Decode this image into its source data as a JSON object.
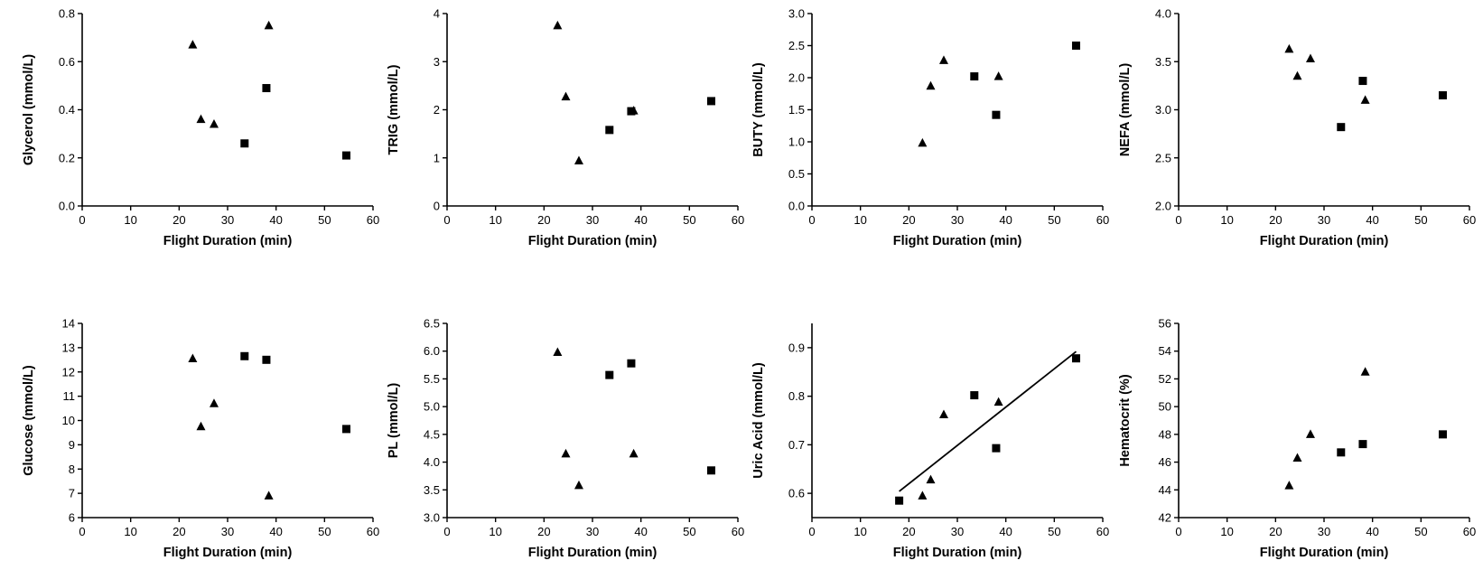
{
  "chart_data": [
    {
      "type": "scatter",
      "title": "",
      "xlabel": "Flight Duration (min)",
      "ylabel": "Glycerol (mmol/L)",
      "xlim": [
        0,
        60
      ],
      "xticks": [
        0,
        10,
        20,
        30,
        40,
        50,
        60
      ],
      "xtick_labels": [
        "0",
        "10",
        "20",
        "30",
        "40",
        "50",
        "60"
      ],
      "ylim": [
        0,
        0.8
      ],
      "yticks": [
        0,
        0.2,
        0.4,
        0.6,
        0.8
      ],
      "ytick_labels": [
        "0.0",
        "0.2",
        "0.4",
        "0.6",
        "0.8"
      ],
      "series": [
        {
          "marker": "triangle",
          "points": [
            [
              22.8,
              0.67
            ],
            [
              24.5,
              0.36
            ],
            [
              27.2,
              0.34
            ],
            [
              38.5,
              0.75
            ]
          ]
        },
        {
          "marker": "square",
          "points": [
            [
              33.5,
              0.26
            ],
            [
              38.0,
              0.49
            ],
            [
              54.5,
              0.21
            ]
          ]
        }
      ]
    },
    {
      "type": "scatter",
      "title": "",
      "xlabel": "Flight Duration (min)",
      "ylabel": "TRIG (mmol/L)",
      "xlim": [
        0,
        60
      ],
      "xticks": [
        0,
        10,
        20,
        30,
        40,
        50,
        60
      ],
      "xtick_labels": [
        "0",
        "10",
        "20",
        "30",
        "40",
        "50",
        "60"
      ],
      "ylim": [
        0,
        4
      ],
      "yticks": [
        0,
        1,
        2,
        3,
        4
      ],
      "ytick_labels": [
        "0",
        "1",
        "2",
        "3",
        "4"
      ],
      "series": [
        {
          "marker": "triangle",
          "points": [
            [
              22.8,
              3.75
            ],
            [
              24.5,
              2.27
            ],
            [
              27.2,
              0.94
            ],
            [
              38.5,
              1.98
            ]
          ]
        },
        {
          "marker": "square",
          "points": [
            [
              33.5,
              1.58
            ],
            [
              38.0,
              1.97
            ],
            [
              54.5,
              2.18
            ]
          ]
        }
      ]
    },
    {
      "type": "scatter",
      "title": "",
      "xlabel": "Flight Duration (min)",
      "ylabel": "BUTY (mmol/L)",
      "xlim": [
        0,
        60
      ],
      "xticks": [
        0,
        10,
        20,
        30,
        40,
        50,
        60
      ],
      "xtick_labels": [
        "0",
        "10",
        "20",
        "30",
        "40",
        "50",
        "60"
      ],
      "ylim": [
        0,
        3
      ],
      "yticks": [
        0,
        0.5,
        1,
        1.5,
        2,
        2.5,
        3
      ],
      "ytick_labels": [
        "0.0",
        "0.5",
        "1.0",
        "1.5",
        "2.0",
        "2.5",
        "3.0"
      ],
      "series": [
        {
          "marker": "triangle",
          "points": [
            [
              22.8,
              0.98
            ],
            [
              24.5,
              1.87
            ],
            [
              27.2,
              2.27
            ],
            [
              38.5,
              2.02
            ]
          ]
        },
        {
          "marker": "square",
          "points": [
            [
              33.5,
              2.02
            ],
            [
              38.0,
              1.42
            ],
            [
              54.5,
              2.5
            ]
          ]
        }
      ]
    },
    {
      "type": "scatter",
      "title": "",
      "xlabel": "Flight Duration (min)",
      "ylabel": "NEFA (mmol/L)",
      "xlim": [
        0,
        60
      ],
      "xticks": [
        0,
        10,
        20,
        30,
        40,
        50,
        60
      ],
      "xtick_labels": [
        "0",
        "10",
        "20",
        "30",
        "40",
        "50",
        "60"
      ],
      "ylim": [
        2,
        4
      ],
      "yticks": [
        2,
        2.5,
        3,
        3.5,
        4
      ],
      "ytick_labels": [
        "2.0",
        "2.5",
        "3.0",
        "3.5",
        "4.0"
      ],
      "series": [
        {
          "marker": "triangle",
          "points": [
            [
              22.8,
              3.63
            ],
            [
              24.5,
              3.35
            ],
            [
              27.2,
              3.53
            ],
            [
              38.5,
              3.1
            ]
          ]
        },
        {
          "marker": "square",
          "points": [
            [
              33.5,
              2.82
            ],
            [
              38.0,
              3.3
            ],
            [
              54.5,
              3.15
            ]
          ]
        }
      ]
    },
    {
      "type": "scatter",
      "title": "",
      "xlabel": "Flight Duration (min)",
      "ylabel": "Glucose (mmol/L)",
      "xlim": [
        0,
        60
      ],
      "xticks": [
        0,
        10,
        20,
        30,
        40,
        50,
        60
      ],
      "xtick_labels": [
        "0",
        "10",
        "20",
        "30",
        "40",
        "50",
        "60"
      ],
      "ylim": [
        6,
        14
      ],
      "yticks": [
        6,
        7,
        8,
        9,
        10,
        11,
        12,
        13,
        14
      ],
      "ytick_labels": [
        "6",
        "7",
        "8",
        "9",
        "10",
        "11",
        "12",
        "13",
        "14"
      ],
      "series": [
        {
          "marker": "triangle",
          "points": [
            [
              22.8,
              12.55
            ],
            [
              24.5,
              9.75
            ],
            [
              27.2,
              10.7
            ],
            [
              38.5,
              6.9
            ]
          ]
        },
        {
          "marker": "square",
          "points": [
            [
              33.5,
              12.65
            ],
            [
              38.0,
              12.5
            ],
            [
              54.5,
              9.65
            ]
          ]
        }
      ]
    },
    {
      "type": "scatter",
      "title": "",
      "xlabel": "Flight Duration (min)",
      "ylabel": "PL (mmol/L)",
      "xlim": [
        0,
        60
      ],
      "xticks": [
        0,
        10,
        20,
        30,
        40,
        50,
        60
      ],
      "xtick_labels": [
        "0",
        "10",
        "20",
        "30",
        "40",
        "50",
        "60"
      ],
      "ylim": [
        3,
        6.5
      ],
      "yticks": [
        3,
        3.5,
        4,
        4.5,
        5,
        5.5,
        6,
        6.5
      ],
      "ytick_labels": [
        "3.0",
        "3.5",
        "4.0",
        "4.5",
        "5.0",
        "5.5",
        "6.0",
        "6.5"
      ],
      "series": [
        {
          "marker": "triangle",
          "points": [
            [
              22.8,
              5.98
            ],
            [
              24.5,
              4.15
            ],
            [
              27.2,
              3.58
            ],
            [
              38.5,
              4.15
            ]
          ]
        },
        {
          "marker": "square",
          "points": [
            [
              33.5,
              5.57
            ],
            [
              38.0,
              5.78
            ],
            [
              54.5,
              3.85
            ]
          ]
        }
      ]
    },
    {
      "type": "scatter",
      "title": "",
      "xlabel": "Flight Duration (min)",
      "ylabel": "Uric Acid (mmol/L)",
      "xlim": [
        0,
        60
      ],
      "xticks": [
        0,
        10,
        20,
        30,
        40,
        50,
        60
      ],
      "xtick_labels": [
        "0",
        "10",
        "20",
        "30",
        "40",
        "50",
        "60"
      ],
      "ylim": [
        0.55,
        0.95
      ],
      "yticks": [
        0.6,
        0.7,
        0.8,
        0.9
      ],
      "ytick_labels": [
        "0.6",
        "0.7",
        "0.8",
        "0.9"
      ],
      "series": [
        {
          "marker": "triangle",
          "points": [
            [
              22.8,
              0.595
            ],
            [
              24.5,
              0.628
            ],
            [
              27.2,
              0.762
            ],
            [
              38.5,
              0.788
            ]
          ]
        },
        {
          "marker": "square",
          "points": [
            [
              18.0,
              0.585
            ],
            [
              33.5,
              0.802
            ],
            [
              38.0,
              0.693
            ],
            [
              54.5,
              0.878
            ]
          ]
        }
      ],
      "regression_line": [
        [
          18.0,
          0.604
        ],
        [
          54.5,
          0.892
        ]
      ]
    },
    {
      "type": "scatter",
      "title": "",
      "xlabel": "Flight Duration (min)",
      "ylabel": "Hematocrit (%)",
      "xlim": [
        0,
        60
      ],
      "xticks": [
        0,
        10,
        20,
        30,
        40,
        50,
        60
      ],
      "xtick_labels": [
        "0",
        "10",
        "20",
        "30",
        "40",
        "50",
        "60"
      ],
      "ylim": [
        42,
        56
      ],
      "yticks": [
        42,
        44,
        46,
        48,
        50,
        52,
        54,
        56
      ],
      "ytick_labels": [
        "42",
        "44",
        "46",
        "48",
        "50",
        "52",
        "54",
        "56"
      ],
      "series": [
        {
          "marker": "triangle",
          "points": [
            [
              22.8,
              44.3
            ],
            [
              24.5,
              46.3
            ],
            [
              27.2,
              48.0
            ],
            [
              38.5,
              52.5
            ]
          ]
        },
        {
          "marker": "square",
          "points": [
            [
              33.5,
              46.7
            ],
            [
              38.0,
              47.3
            ],
            [
              54.5,
              48.0
            ]
          ]
        }
      ]
    }
  ]
}
